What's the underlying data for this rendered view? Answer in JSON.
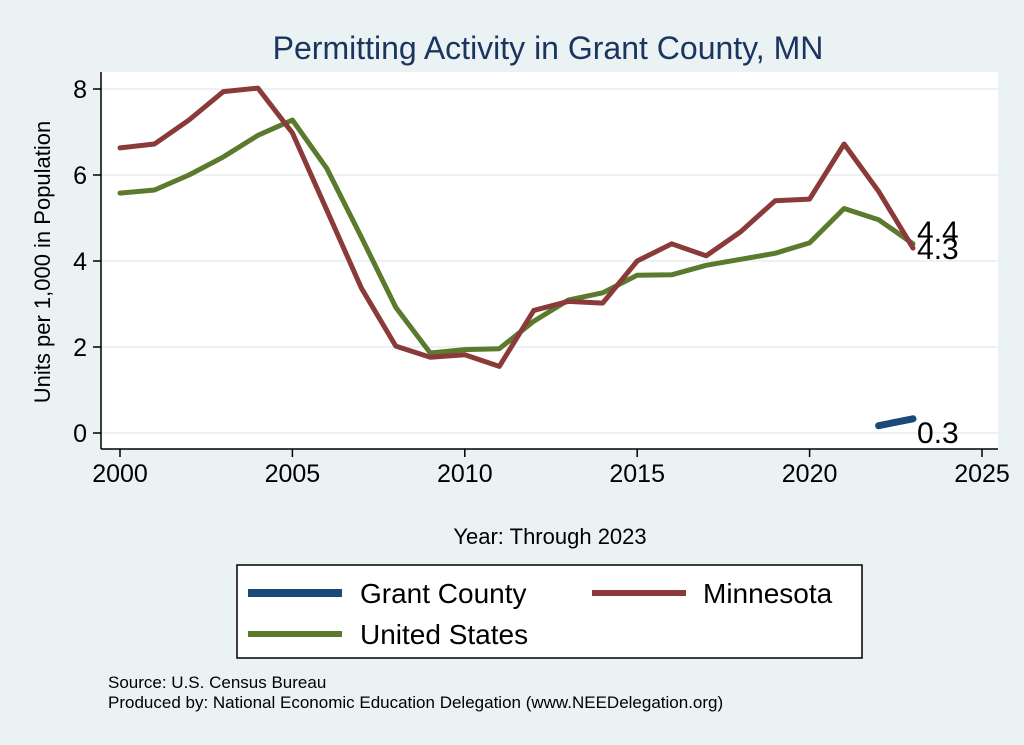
{
  "chart_data": {
    "type": "line",
    "title": "Permitting Activity in Grant County, MN",
    "xlabel": "Year: Through 2023",
    "ylabel": "Units per 1,000 in Population",
    "xlim": [
      2000,
      2025
    ],
    "ylim": [
      0,
      8
    ],
    "xticks": [
      2000,
      2005,
      2010,
      2015,
      2020,
      2025
    ],
    "yticks": [
      0,
      2,
      4,
      6,
      8
    ],
    "grid": true,
    "legend_position": "bottom",
    "series": [
      {
        "name": "Grant County",
        "color": "#1a4a7a",
        "x": [
          2022,
          2023
        ],
        "values": [
          0.17,
          0.33
        ],
        "end_label": "0.3"
      },
      {
        "name": "Minnesota",
        "color": "#8b3a3a",
        "x": [
          2000,
          2001,
          2002,
          2003,
          2004,
          2005,
          2006,
          2007,
          2008,
          2009,
          2010,
          2011,
          2012,
          2013,
          2014,
          2015,
          2016,
          2017,
          2018,
          2019,
          2020,
          2021,
          2022,
          2023
        ],
        "values": [
          6.63,
          6.72,
          7.28,
          7.94,
          8.02,
          6.98,
          5.18,
          3.37,
          2.02,
          1.76,
          1.82,
          1.55,
          2.85,
          3.06,
          3.02,
          4.0,
          4.4,
          4.12,
          4.68,
          5.4,
          5.44,
          6.72,
          5.62,
          4.3
        ],
        "end_label": "4.3"
      },
      {
        "name": "United States",
        "color": "#5c7a2e",
        "x": [
          2000,
          2001,
          2002,
          2003,
          2004,
          2005,
          2006,
          2007,
          2008,
          2009,
          2010,
          2011,
          2012,
          2013,
          2014,
          2015,
          2016,
          2017,
          2018,
          2019,
          2020,
          2021,
          2022,
          2023
        ],
        "values": [
          5.58,
          5.65,
          6.0,
          6.42,
          6.92,
          7.28,
          6.15,
          4.55,
          2.92,
          1.86,
          1.94,
          1.96,
          2.6,
          3.09,
          3.26,
          3.67,
          3.68,
          3.9,
          4.04,
          4.18,
          4.42,
          5.22,
          4.96,
          4.4
        ],
        "end_label": "4.4"
      }
    ]
  },
  "footer": {
    "source": "Source: U.S. Census Bureau",
    "produced_by": "Produced by: National Economic Education Delegation (www.NEEDelegation.org)"
  }
}
